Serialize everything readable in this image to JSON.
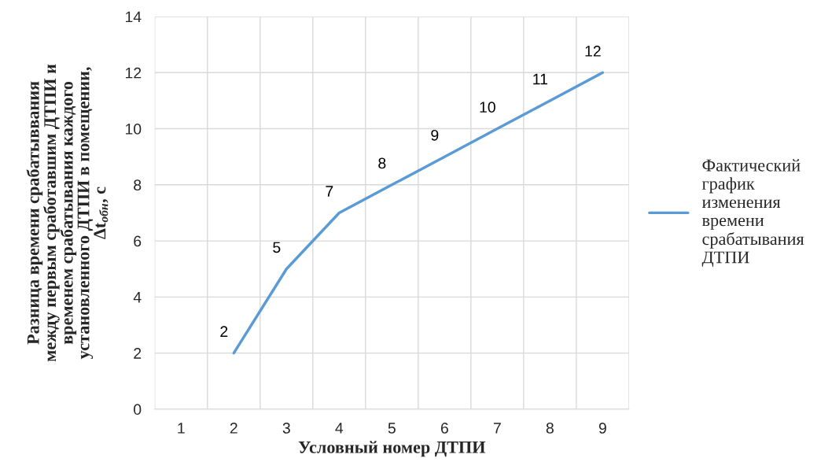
{
  "chart_data": {
    "type": "line",
    "xlabel": "Условный номер ДТПИ",
    "ylabel": "Разница времени срабатыввания\nмежду первым сработавшим ДТПИ и\nвременем срабатывания каждого\nустановленного ДТПИ в помещении,\nΔt$_{обн}$, с",
    "categories": [
      "1",
      "2",
      "3",
      "4",
      "5",
      "6",
      "7",
      "8",
      "9"
    ],
    "series": [
      {
        "name": "Фактический\nграфик\nизменения\nвремени\nсрабатывания\nДТПИ",
        "color": "#5b9bd5",
        "values": [
          null,
          2,
          5,
          7,
          8,
          9,
          10,
          11,
          12
        ]
      }
    ],
    "ylim": [
      0,
      14
    ],
    "yticks": [
      0,
      2,
      4,
      6,
      8,
      10,
      12,
      14
    ],
    "grid": true,
    "legend": "right",
    "data_labels": true,
    "marker": "none",
    "line_style": "solid"
  }
}
